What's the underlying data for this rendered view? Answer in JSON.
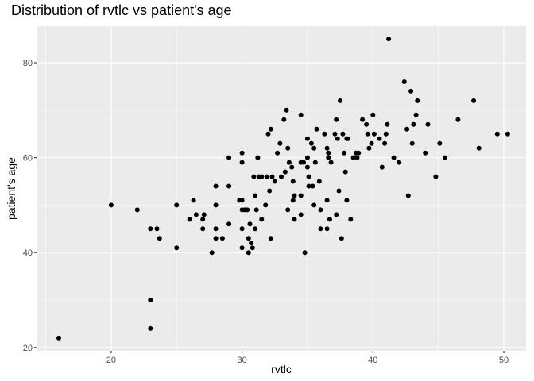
{
  "chart_data": {
    "type": "scatter",
    "title": "Distribution of rvtlc vs patient's age",
    "xlabel": "rvtlc",
    "ylabel": "patient's age",
    "xlim": [
      14.3,
      51.7
    ],
    "ylim": [
      19.3,
      87.7
    ],
    "x_ticks": [
      20,
      30,
      40,
      50
    ],
    "y_ticks": [
      20,
      40,
      60,
      80
    ],
    "grid": true,
    "colors": {
      "panel": "#ebebeb",
      "grid": "#ffffff",
      "point": "#000000"
    },
    "points": [
      [
        16.0,
        22
      ],
      [
        20.0,
        50
      ],
      [
        22.0,
        49
      ],
      [
        23.0,
        45
      ],
      [
        23.0,
        30
      ],
      [
        23.0,
        24
      ],
      [
        23.5,
        45
      ],
      [
        23.7,
        43
      ],
      [
        25.0,
        50
      ],
      [
        25.0,
        41
      ],
      [
        26.0,
        47
      ],
      [
        26.3,
        51
      ],
      [
        26.5,
        48
      ],
      [
        27.0,
        45
      ],
      [
        27.1,
        48
      ],
      [
        27.0,
        47
      ],
      [
        27.7,
        40
      ],
      [
        28.0,
        54
      ],
      [
        28.0,
        50
      ],
      [
        28.0,
        45
      ],
      [
        28.0,
        43
      ],
      [
        28.5,
        43
      ],
      [
        29.0,
        60
      ],
      [
        29.0,
        54
      ],
      [
        29.0,
        46
      ],
      [
        29.8,
        51
      ],
      [
        30.0,
        51
      ],
      [
        30.0,
        61
      ],
      [
        30.0,
        59
      ],
      [
        30.0,
        49
      ],
      [
        30.0,
        45
      ],
      [
        30.0,
        41
      ],
      [
        30.2,
        49
      ],
      [
        30.4,
        49
      ],
      [
        30.5,
        43
      ],
      [
        30.5,
        40
      ],
      [
        30.7,
        42
      ],
      [
        30.8,
        41
      ],
      [
        30.6,
        46
      ],
      [
        30.9,
        56
      ],
      [
        31.0,
        52
      ],
      [
        31.0,
        45
      ],
      [
        31.1,
        49
      ],
      [
        31.2,
        60
      ],
      [
        31.3,
        56
      ],
      [
        31.5,
        56
      ],
      [
        31.5,
        47
      ],
      [
        31.8,
        50
      ],
      [
        31.9,
        56
      ],
      [
        32.0,
        65
      ],
      [
        32.1,
        53
      ],
      [
        32.3,
        56
      ],
      [
        32.2,
        66
      ],
      [
        32.2,
        43
      ],
      [
        32.5,
        55
      ],
      [
        32.7,
        61
      ],
      [
        32.9,
        63
      ],
      [
        33.0,
        56
      ],
      [
        33.2,
        68
      ],
      [
        33.4,
        70
      ],
      [
        33.3,
        57
      ],
      [
        33.5,
        62
      ],
      [
        33.6,
        59
      ],
      [
        33.8,
        58
      ],
      [
        33.9,
        55
      ],
      [
        34.0,
        52
      ],
      [
        33.5,
        49
      ],
      [
        33.9,
        51
      ],
      [
        34.0,
        47
      ],
      [
        34.5,
        69
      ],
      [
        34.5,
        59
      ],
      [
        34.5,
        52
      ],
      [
        34.5,
        48
      ],
      [
        34.7,
        59
      ],
      [
        35.0,
        64
      ],
      [
        35.0,
        60
      ],
      [
        35.0,
        58
      ],
      [
        35.1,
        56
      ],
      [
        35.1,
        54
      ],
      [
        35.3,
        63
      ],
      [
        35.5,
        62
      ],
      [
        35.6,
        59
      ],
      [
        35.4,
        54
      ],
      [
        35.5,
        50
      ],
      [
        34.8,
        40
      ],
      [
        35.7,
        66
      ],
      [
        35.9,
        55
      ],
      [
        36.0,
        49
      ],
      [
        36.0,
        45
      ],
      [
        36.5,
        45
      ],
      [
        36.3,
        65
      ],
      [
        36.5,
        62
      ],
      [
        36.6,
        60
      ],
      [
        36.6,
        61
      ],
      [
        36.5,
        51
      ],
      [
        36.8,
        59
      ],
      [
        36.7,
        47
      ],
      [
        37.2,
        68
      ],
      [
        37.1,
        65
      ],
      [
        37.3,
        64
      ],
      [
        37.2,
        48
      ],
      [
        37.4,
        53
      ],
      [
        37.5,
        72
      ],
      [
        37.7,
        65
      ],
      [
        37.8,
        61
      ],
      [
        37.6,
        43
      ],
      [
        37.9,
        57
      ],
      [
        38.0,
        64
      ],
      [
        38.1,
        64
      ],
      [
        38.0,
        51
      ],
      [
        38.3,
        47
      ],
      [
        38.5,
        60
      ],
      [
        38.7,
        61
      ],
      [
        38.9,
        61
      ],
      [
        38.8,
        60
      ],
      [
        39.2,
        68
      ],
      [
        39.5,
        67
      ],
      [
        39.6,
        65
      ],
      [
        39.7,
        62
      ],
      [
        39.9,
        63
      ],
      [
        40.0,
        69
      ],
      [
        40.1,
        65
      ],
      [
        40.5,
        64
      ],
      [
        40.7,
        58
      ],
      [
        40.9,
        63
      ],
      [
        41.0,
        65
      ],
      [
        41.1,
        67
      ],
      [
        41.2,
        85
      ],
      [
        41.6,
        60
      ],
      [
        42.0,
        59
      ],
      [
        42.4,
        76
      ],
      [
        42.6,
        66
      ],
      [
        42.7,
        52
      ],
      [
        42.9,
        74
      ],
      [
        43.0,
        63
      ],
      [
        43.1,
        67
      ],
      [
        43.4,
        72
      ],
      [
        43.3,
        69
      ],
      [
        44.0,
        61
      ],
      [
        44.2,
        67
      ],
      [
        44.8,
        56
      ],
      [
        45.1,
        63
      ],
      [
        45.5,
        60
      ],
      [
        46.5,
        68
      ],
      [
        47.7,
        72
      ],
      [
        48.1,
        62
      ],
      [
        49.5,
        65
      ],
      [
        50.3,
        65
      ]
    ]
  }
}
